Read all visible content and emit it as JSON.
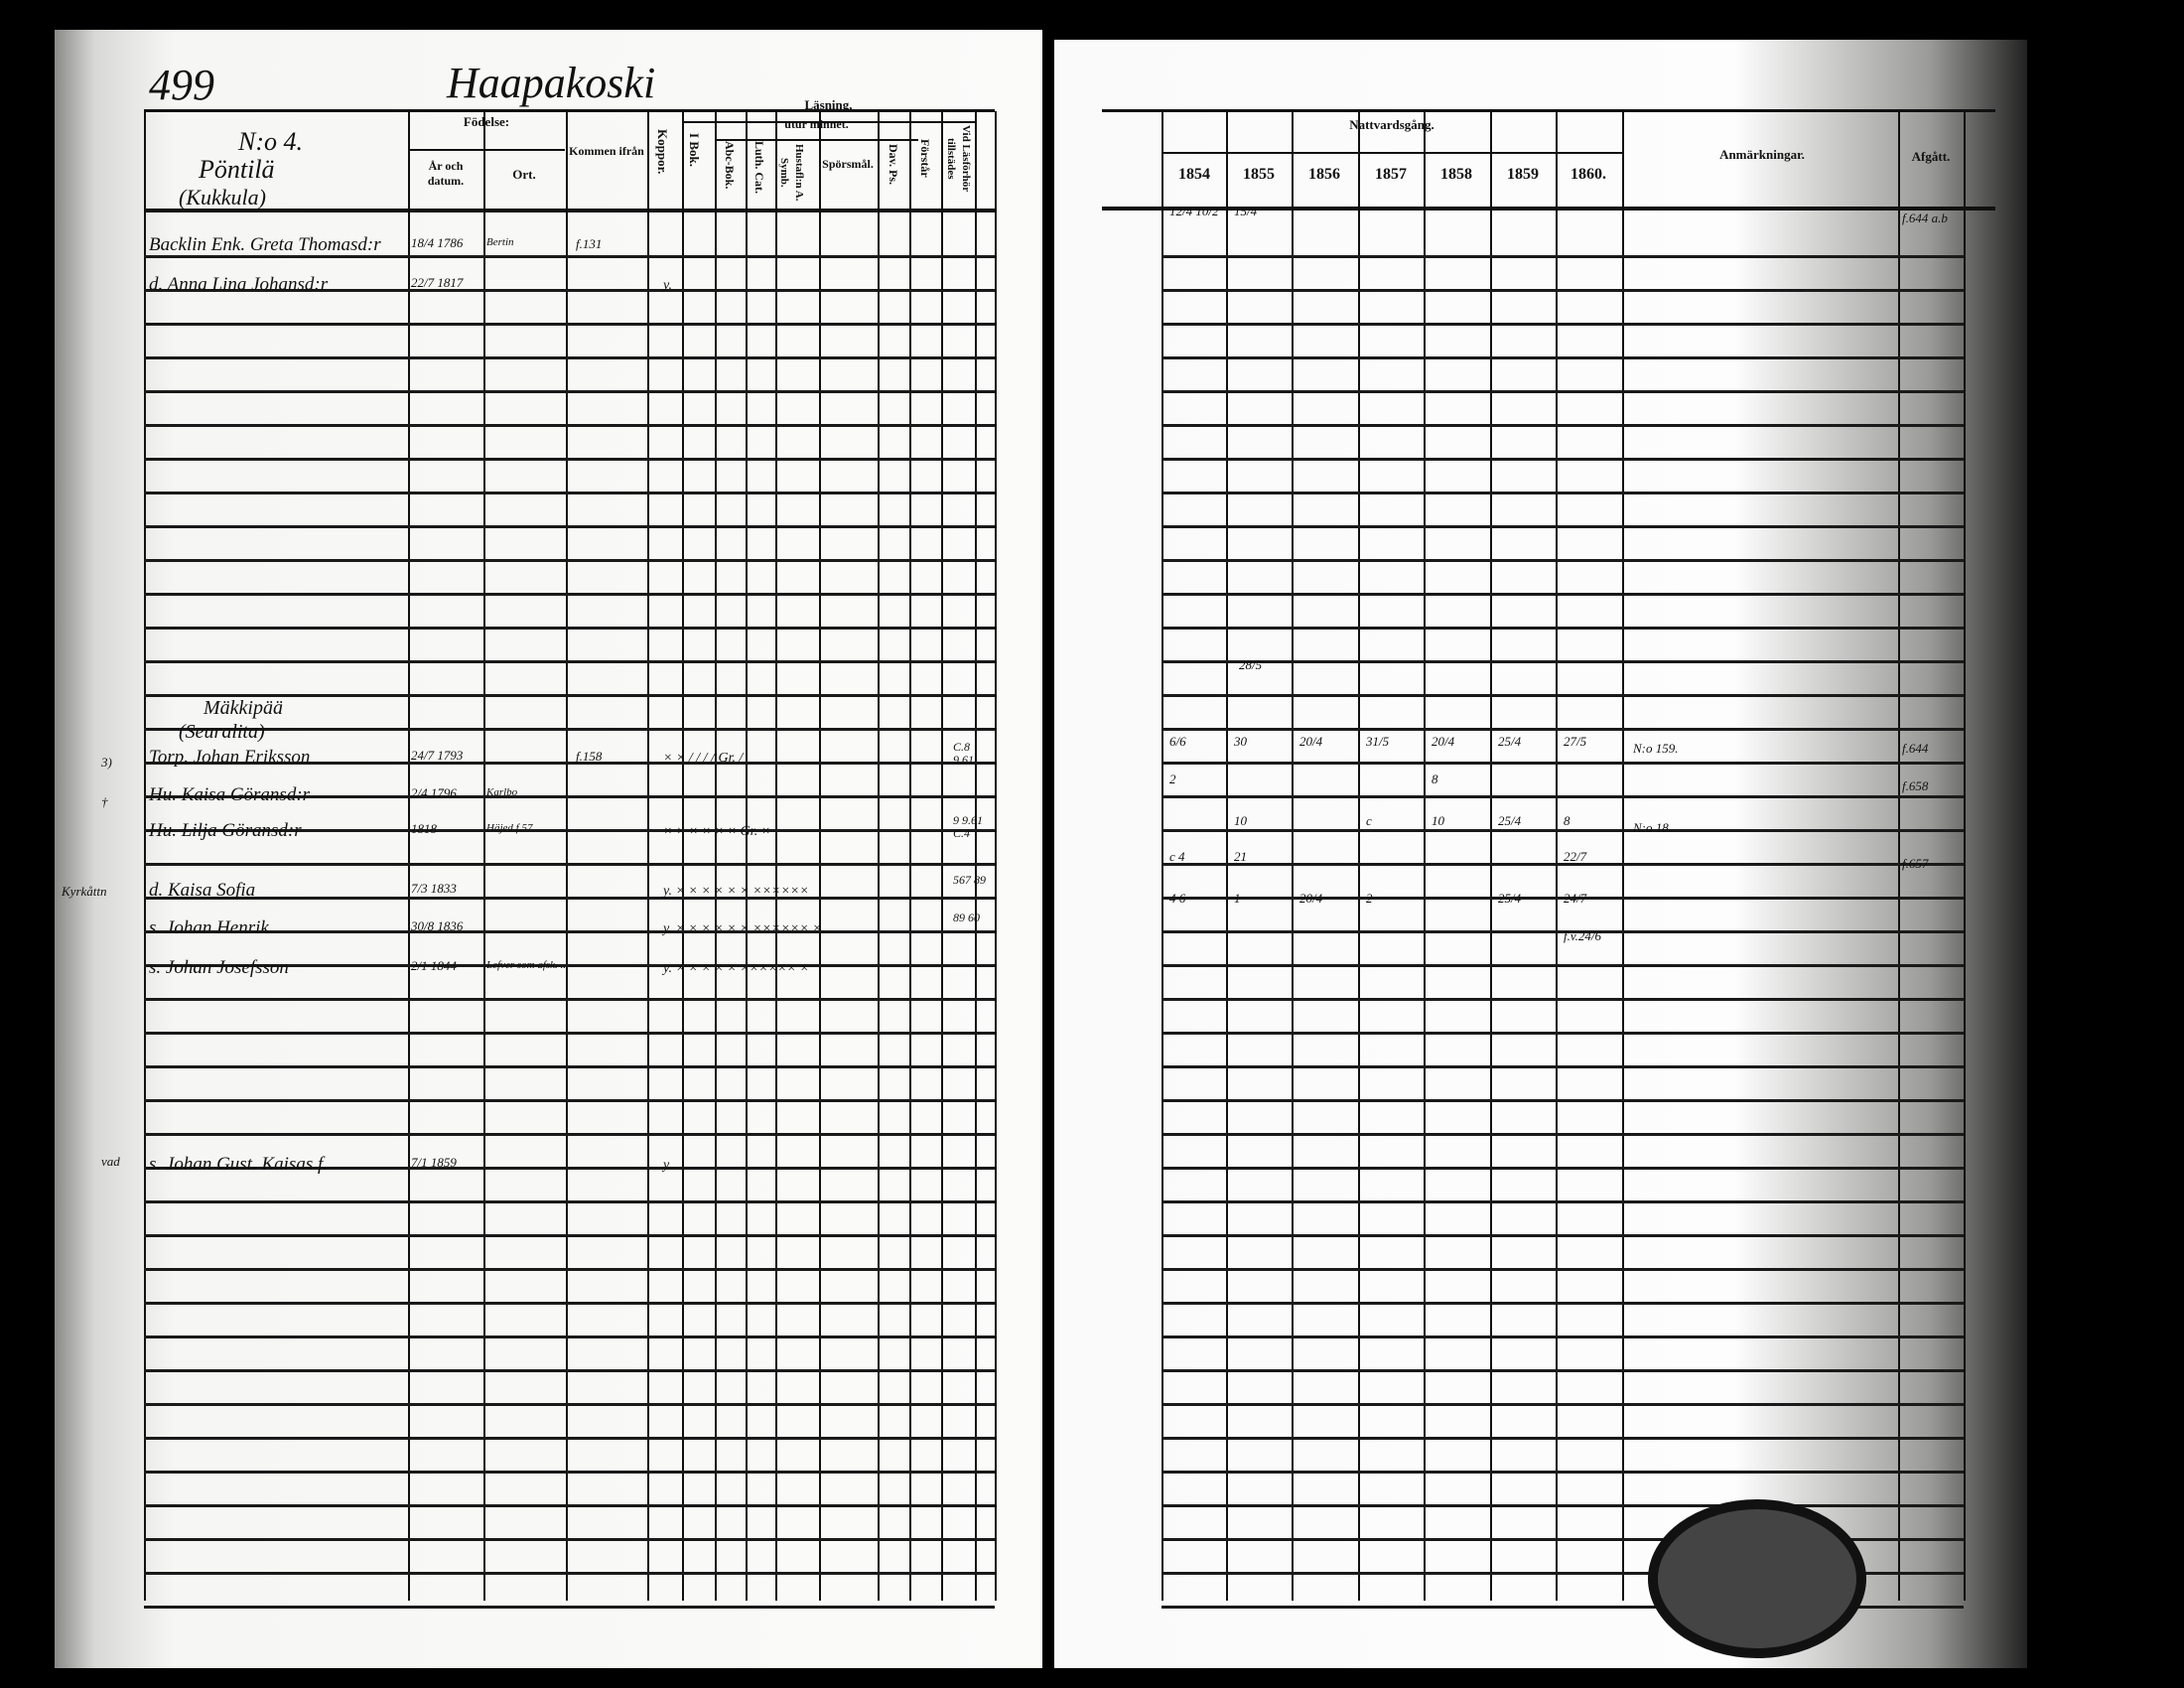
{
  "left_page": {
    "page_number": "499",
    "village": "Haapakoski",
    "household": {
      "number": "N:o 4.",
      "farm": "Pöntilä",
      "subfarm": "(Kukkula)"
    },
    "headers": {
      "fodelse": "Födelse:",
      "ar_datum": "År och datum.",
      "ort": "Ort.",
      "kommen": "Kommen ifrån",
      "koppor": "Koppor.",
      "lasning": "Läsning,",
      "i_bok": "I Bok.",
      "utur_minnet": "utur minnet.",
      "abc": "Abc-Bok.",
      "luth": "Luth. Cat.",
      "hustafl": "Hustafl:n A. Symb.",
      "sporsmal": "Spörsmål.",
      "dav": "Dav. Ps.",
      "forstar": "Förstår",
      "lasforhor": "Vid Läsförhör tillstädes"
    },
    "section2": {
      "farm": "Mäkkipää",
      "subfarm": "(Seuralita)"
    },
    "entries": [
      {
        "name": "Backlin Enk. Greta Thomasd:r",
        "birth": "18/4 1786",
        "place": "Bertin",
        "from": "f.131",
        "reading": "",
        "forhor": ""
      },
      {
        "name": "d. Anna Lina Johansd:r",
        "birth": "22/7 1817",
        "place": "",
        "from": "",
        "reading": "y.",
        "forhor": ""
      },
      {
        "name": "Torp. Johan Eriksson",
        "birth": "24/7 1793",
        "place": "",
        "from": "f.158",
        "reading": "× ×  /  /  / /   Gr. /",
        "forhor": "C.8 9.61"
      },
      {
        "name": "Hu. Kaisa Göransd:r",
        "birth": "2/4 1796",
        "place": "Karlbo",
        "from": "",
        "reading": "",
        "forhor": ""
      },
      {
        "name": "Hu. Lilja Göransd:r",
        "birth": "1818",
        "place": "Häjed f.57",
        "from": "",
        "reading": "× ×  ×  ×  × ×   Gr. ×",
        "forhor": "9 9.61 C.4"
      },
      {
        "name": "d. Kaisa Sofia",
        "birth": "7/3 1833",
        "place": "",
        "from": "",
        "reading": "y. × ×  ×  ×  × ×  ××××××",
        "forhor": "567 89"
      },
      {
        "name": "s. Johan Henrik",
        "birth": "30/8 1836",
        "place": "",
        "from": "",
        "reading": "y. × ×  ×  ×  × ×  ×××××× ×",
        "forhor": "89 60"
      },
      {
        "name": "s. Johan Josefsson",
        "birth": "2/1 1844",
        "place": "Lefver som afsk. ...",
        "from": "",
        "reading": "y. × ×  ×  ×  ×  ×××××× ×",
        "forhor": ""
      },
      {
        "name": "s. Johan Gust. Kaisas f.",
        "birth": "7/1 1859",
        "place": "",
        "from": "",
        "reading": "y.",
        "forhor": ""
      }
    ],
    "margin_notes": [
      "3)",
      "†",
      "Kyrkåttn",
      "vad"
    ]
  },
  "right_page": {
    "nattvard_header": "Nattvardsgång.",
    "years": [
      "1854",
      "1855",
      "1856",
      "1857",
      "1858",
      "1859",
      "1860."
    ],
    "anmarkningar": "Anmärkningar.",
    "afgatt": "Afgått.",
    "rows": [
      {
        "marks": [
          "12/4 10/2",
          "15/4",
          "",
          "",
          "",
          "",
          ""
        ],
        "note": "",
        "afgatt": "f.644 a.b"
      },
      {
        "marks": [
          "",
          "",
          "",
          "",
          "",
          "",
          ""
        ],
        "note": "",
        "afgatt": ""
      },
      {
        "marks": [
          "6/6",
          "30",
          "20/4",
          "31/5",
          "20/4",
          "25/4",
          "27/5"
        ],
        "note": "N:o 159.",
        "afgatt": "f.644"
      },
      {
        "marks": [
          "2",
          "",
          "",
          "",
          "8",
          "",
          ""
        ],
        "note": "",
        "afgatt": "f.658"
      },
      {
        "marks": [
          "",
          "10",
          "",
          "c",
          "10",
          "25/4",
          "8"
        ],
        "note": "N:o 18.",
        "afgatt": ""
      },
      {
        "marks": [
          "c 4",
          "21",
          "",
          "",
          "",
          "",
          "22/7"
        ],
        "note": "",
        "afgatt": "f.657"
      },
      {
        "marks": [
          "4 6",
          "1",
          "20/4",
          "2",
          "",
          "25/4",
          "24/7"
        ],
        "note": "",
        "afgatt": ""
      },
      {
        "marks": [
          "",
          "",
          "",
          "",
          "",
          "",
          "f.v.24/6"
        ],
        "note": "",
        "afgatt": ""
      }
    ],
    "extra_mark_1855": "28/5"
  }
}
